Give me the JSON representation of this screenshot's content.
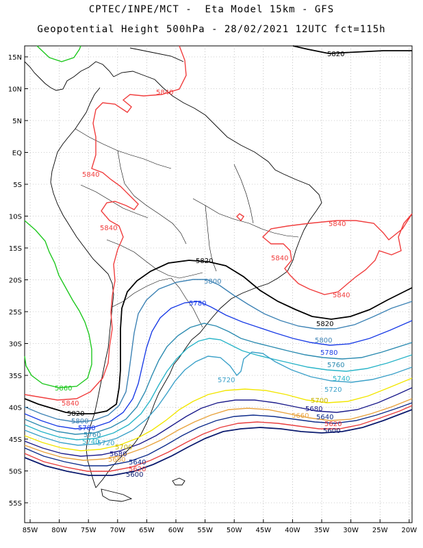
{
  "header": {
    "line1": "CPTEC/INPE/MCT -  Eta Model 15km - GFS",
    "line2": "Geopotential Height 500hPa - 28/02/2021 12UTC fct=115h"
  },
  "axes": {
    "lat_labels": [
      "15N",
      "10N",
      "5N",
      "EQ",
      "5S",
      "10S",
      "15S",
      "20S",
      "25S",
      "30S",
      "35S",
      "40S",
      "45S",
      "50S",
      "55S"
    ],
    "lon_labels": [
      "85W",
      "80W",
      "75W",
      "70W",
      "65W",
      "60W",
      "55W",
      "50W",
      "45W",
      "40W",
      "35W",
      "30W",
      "25W",
      "20W"
    ]
  },
  "contour_colors": {
    "5600": "#0a1a6e",
    "5620": "#e83c3c",
    "5640": "#0c2a8a",
    "5660": "#e8a23c",
    "5680": "#1a1a8a",
    "5700": "#f2e600",
    "5720": "#3aa0c8",
    "5740": "#28b4c8",
    "5760": "#2a8ab0",
    "5780": "#1a3ce6",
    "5800": "#3c82b4",
    "5820": "#000000",
    "5840": "#f03c3c",
    "5860": "#1ec81e"
  },
  "contour_labels": [
    {
      "text": "5820",
      "color": "#000000"
    },
    {
      "text": "5840",
      "color": "#f03c3c"
    },
    {
      "text": "5840",
      "color": "#f03c3c"
    },
    {
      "text": "5840",
      "color": "#f03c3c"
    },
    {
      "text": "5840",
      "color": "#f03c3c"
    },
    {
      "text": "5840",
      "color": "#f03c3c"
    },
    {
      "text": "5840",
      "color": "#f03c3c"
    },
    {
      "text": "5820",
      "color": "#000000"
    },
    {
      "text": "5800",
      "color": "#3c82b4"
    },
    {
      "text": "5780",
      "color": "#1a3ce6"
    },
    {
      "text": "5820",
      "color": "#000000"
    },
    {
      "text": "5800",
      "color": "#3c82b4"
    },
    {
      "text": "5780",
      "color": "#1a3ce6"
    },
    {
      "text": "5760",
      "color": "#2a8ab0"
    },
    {
      "text": "5740",
      "color": "#28b4c8"
    },
    {
      "text": "5720",
      "color": "#3aa0c8"
    },
    {
      "text": "5720",
      "color": "#3aa0c8"
    },
    {
      "text": "5700",
      "color": "#c8b400"
    },
    {
      "text": "5680",
      "color": "#1a1a8a"
    },
    {
      "text": "5660",
      "color": "#e8a23c"
    },
    {
      "text": "5640",
      "color": "#0c2a8a"
    },
    {
      "text": "5620",
      "color": "#e83c3c"
    },
    {
      "text": "5600",
      "color": "#0a1a6e"
    },
    {
      "text": "5860",
      "color": "#1ec81e"
    },
    {
      "text": "5840",
      "color": "#f03c3c"
    },
    {
      "text": "5820",
      "color": "#000000"
    },
    {
      "text": "5800",
      "color": "#3c82b4"
    },
    {
      "text": "5780",
      "color": "#1a3ce6"
    },
    {
      "text": "5760",
      "color": "#2a8ab0"
    },
    {
      "text": "5740",
      "color": "#28b4c8"
    },
    {
      "text": "5720",
      "color": "#3aa0c8"
    },
    {
      "text": "5700",
      "color": "#c8b400"
    },
    {
      "text": "5680",
      "color": "#1a1a8a"
    },
    {
      "text": "5660",
      "color": "#e8a23c"
    },
    {
      "text": "5640",
      "color": "#0c2a8a"
    },
    {
      "text": "5620",
      "color": "#e83c3c"
    },
    {
      "text": "5600",
      "color": "#0a1a6e"
    }
  ]
}
